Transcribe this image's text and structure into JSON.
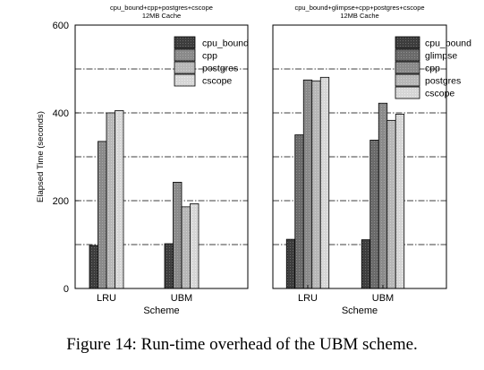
{
  "colors": {
    "cpu_bound": "#3d3d3d",
    "glimpse": "#6a6a6a",
    "cpp": "#8a8a8a",
    "postgres": "#b7b7b7",
    "cscope": "#d6d6d6"
  },
  "chart_data": [
    {
      "type": "bar",
      "title": "cpu_bound+cpp+postgres+cscope",
      "subtitle": "12MB Cache",
      "xlabel": "Scheme",
      "ylabel": "Elapsed Time (seconds)",
      "ylim": [
        0,
        600
      ],
      "yticks": [
        "0",
        "200",
        "400",
        "600"
      ],
      "grid_lines": [
        100,
        300,
        500
      ],
      "legend_position": "top-right",
      "categories": [
        "LRU",
        "UBM"
      ],
      "series": [
        {
          "name": "cpu_bound",
          "values": [
            98,
            102
          ]
        },
        {
          "name": "cpp",
          "values": [
            335,
            242
          ]
        },
        {
          "name": "postgres",
          "values": [
            400,
            186
          ]
        },
        {
          "name": "cscope",
          "values": [
            405,
            193
          ]
        }
      ]
    },
    {
      "type": "bar",
      "title": "cpu_bound+glimpse+cpp+postgres+cscope",
      "subtitle": "12MB Cache",
      "xlabel": "Scheme",
      "ylabel": "",
      "ylim": [
        0,
        600
      ],
      "yticks": [],
      "grid_lines": [
        100,
        300,
        500
      ],
      "legend_position": "top-right",
      "categories": [
        "LRU",
        "UBM"
      ],
      "series": [
        {
          "name": "cpu_bound",
          "values": [
            112,
            111
          ]
        },
        {
          "name": "glimpse",
          "values": [
            350,
            338
          ]
        },
        {
          "name": "cpp",
          "values": [
            475,
            422
          ]
        },
        {
          "name": "postgres",
          "values": [
            473,
            383
          ]
        },
        {
          "name": "cscope",
          "values": [
            481,
            397
          ]
        }
      ]
    }
  ],
  "caption": "Figure 14: Run-time overhead of the UBM scheme."
}
